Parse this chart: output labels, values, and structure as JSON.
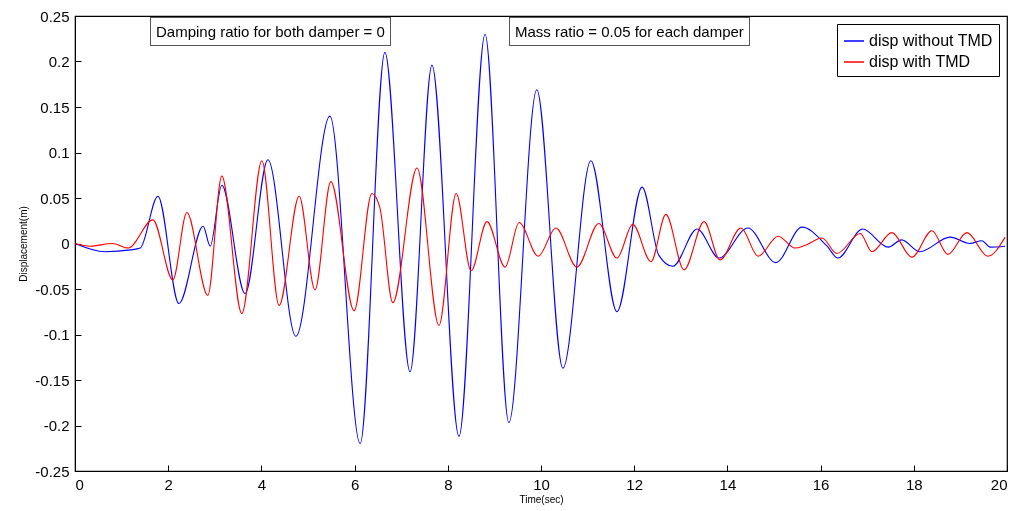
{
  "chart_data": {
    "type": "line",
    "xlabel": "Time(sec)",
    "ylabel": "Displacement(m)",
    "annotations": [
      "Damping ratio for both damper = 0",
      "Mass ratio = 0.05 for each damper"
    ],
    "xlim": [
      0,
      20
    ],
    "ylim": [
      -0.25,
      0.25
    ],
    "xticks": [
      0,
      2,
      4,
      6,
      8,
      10,
      12,
      14,
      16,
      18,
      20
    ],
    "yticks": [
      -0.25,
      -0.2,
      -0.15,
      -0.1,
      -0.05,
      0,
      0.05,
      0.1,
      0.15,
      0.2,
      0.25
    ],
    "grid": false,
    "legend": "top right",
    "marker": "none",
    "line_style": "solid",
    "series": [
      {
        "name": "disp without TMD",
        "color": "#0000ff",
        "x": [
          0,
          0.64,
          1.2,
          1.4,
          1.78,
          2.23,
          2.75,
          2.9,
          3.15,
          3.65,
          4.14,
          4.74,
          5.47,
          6.12,
          6.65,
          7.19,
          7.66,
          8.24,
          8.8,
          9.31,
          9.91,
          10.47,
          11.07,
          11.63,
          12.17,
          12.53,
          12.83,
          13.35,
          13.82,
          14.44,
          15.04,
          15.6,
          16.14,
          16.37,
          16.9,
          17.45,
          17.74,
          18.13,
          18.78,
          19.2,
          19.46,
          19.64,
          19.96
        ],
        "values": [
          0,
          -0.009,
          -0.007,
          -0.005,
          0.052,
          -0.066,
          0.019,
          -0.003,
          0.064,
          -0.055,
          0.092,
          -0.102,
          0.14,
          -0.22,
          0.21,
          -0.141,
          0.196,
          -0.212,
          0.23,
          -0.197,
          0.169,
          -0.137,
          0.091,
          -0.075,
          0.062,
          -0.013,
          -0.025,
          0.016,
          -0.016,
          0.017,
          -0.021,
          0.018,
          -0.003,
          -0.016,
          0.016,
          -0.004,
          0.004,
          -0.009,
          0.007,
          0,
          0.003,
          -0.004,
          -0.003
        ]
      },
      {
        "name": "disp with TMD",
        "color": "#ff0000",
        "x": [
          0,
          0.32,
          0.8,
          1.14,
          1.67,
          2.1,
          2.4,
          2.85,
          3.15,
          3.58,
          4.01,
          4.38,
          4.81,
          5.15,
          5.49,
          5.99,
          6.37,
          6.54,
          6.82,
          7.34,
          7.81,
          8.18,
          8.5,
          8.84,
          9.23,
          9.53,
          9.94,
          10.32,
          10.77,
          11.24,
          11.63,
          11.97,
          12.36,
          12.68,
          13.07,
          13.5,
          13.84,
          14.29,
          14.66,
          15.09,
          15.45,
          15.67,
          16.03,
          16.35,
          16.85,
          17.1,
          17.53,
          17.96,
          18.39,
          18.73,
          19.14,
          19.59,
          19.96
        ],
        "values": [
          0,
          -0.003,
          0,
          -0.005,
          0.026,
          -0.04,
          0.034,
          -0.057,
          0.074,
          -0.077,
          0.091,
          -0.068,
          0.052,
          -0.051,
          0.068,
          -0.074,
          0.055,
          0.04,
          -0.065,
          0.083,
          -0.09,
          0.055,
          -0.03,
          0.024,
          -0.026,
          0.023,
          -0.014,
          0.017,
          -0.026,
          0.022,
          -0.016,
          0.021,
          -0.02,
          0.032,
          -0.029,
          0.024,
          -0.018,
          0.017,
          -0.014,
          0.008,
          -0.005,
          -0.002,
          0.006,
          -0.011,
          0.011,
          -0.009,
          0.012,
          -0.015,
          0.014,
          -0.012,
          0.012,
          -0.014,
          0.007
        ]
      }
    ]
  }
}
